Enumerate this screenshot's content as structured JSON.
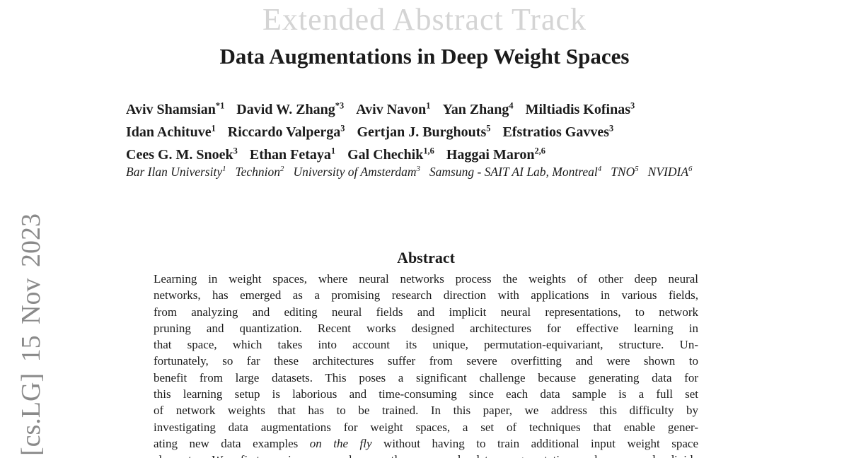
{
  "colors": {
    "track_header": "#d4d4d4",
    "stamp": "#8a8a8a",
    "body_text": "#1b1b1b"
  },
  "page": {
    "track_header": "Extended Abstract Track",
    "title": "Data Augmentations in Deep Weight Spaces"
  },
  "arxiv": {
    "text": "[cs.LG] 15 Nov 2023"
  },
  "authors": {
    "lines": [
      [
        {
          "name": "Aviv Shamsian",
          "sup": "*1"
        },
        {
          "name": "David W. Zhang",
          "sup": "*3"
        },
        {
          "name": "Aviv Navon",
          "sup": "1"
        },
        {
          "name": "Yan Zhang",
          "sup": "4"
        },
        {
          "name": "Miltiadis Kofinas",
          "sup": "3"
        }
      ],
      [
        {
          "name": "Idan Achituve",
          "sup": "1"
        },
        {
          "name": "Riccardo Valperga",
          "sup": "3"
        },
        {
          "name": "Gertjan J. Burghouts",
          "sup": "5"
        },
        {
          "name": "Efstratios Gavves",
          "sup": "3"
        }
      ],
      [
        {
          "name": "Cees G. M. Snoek",
          "sup": "3"
        },
        {
          "name": "Ethan Fetaya",
          "sup": "1"
        },
        {
          "name": "Gal Chechik",
          "sup": "1,6"
        },
        {
          "name": "Haggai Maron",
          "sup": "2,6"
        }
      ]
    ]
  },
  "affiliations": [
    {
      "name": "Bar Ilan University",
      "sup": "1"
    },
    {
      "name": "Technion",
      "sup": "2"
    },
    {
      "name": "University of Amsterdam",
      "sup": "3"
    },
    {
      "name": "Samsung - SAIT AI Lab, Montreal",
      "sup": "4"
    },
    {
      "name": "TNO",
      "sup": "5"
    },
    {
      "name": "NVIDIA",
      "sup": "6"
    }
  ],
  "abstract": {
    "heading": "Abstract",
    "lines": [
      [
        {
          "text": "Learning in weight spaces, where neural networks process the weights of other deep neural"
        }
      ],
      [
        {
          "text": "networks, has emerged as a promising research direction with applications in various fields,"
        }
      ],
      [
        {
          "text": "from analyzing and editing neural fields and implicit neural representations, to network"
        }
      ],
      [
        {
          "text": "pruning and quantization.  Recent works designed architectures for effective learning in"
        }
      ],
      [
        {
          "text": "that space, which takes into account its unique, permutation-equivariant, structure.  Un-"
        }
      ],
      [
        {
          "text": "fortunately, so far these architectures suffer from severe overfitting and were shown to"
        }
      ],
      [
        {
          "text": "benefit from large datasets. This poses a significant challenge because generating data for"
        }
      ],
      [
        {
          "text": "this learning setup is laborious and time-consuming since each data sample is a full set"
        }
      ],
      [
        {
          "text": "of network weights that has to be trained.  In this paper, we address this difficulty by"
        }
      ],
      [
        {
          "text": "investigating data augmentations for weight spaces, a set of techniques that enable gener-"
        }
      ],
      [
        {
          "text": "ating new data examples "
        },
        {
          "text": "on the fly",
          "italic": true
        },
        {
          "text": " without having to train additional input weight space"
        }
      ],
      [
        {
          "text": "elements. We first review several recently proposed data augmentation schemes and divide"
        }
      ]
    ]
  }
}
